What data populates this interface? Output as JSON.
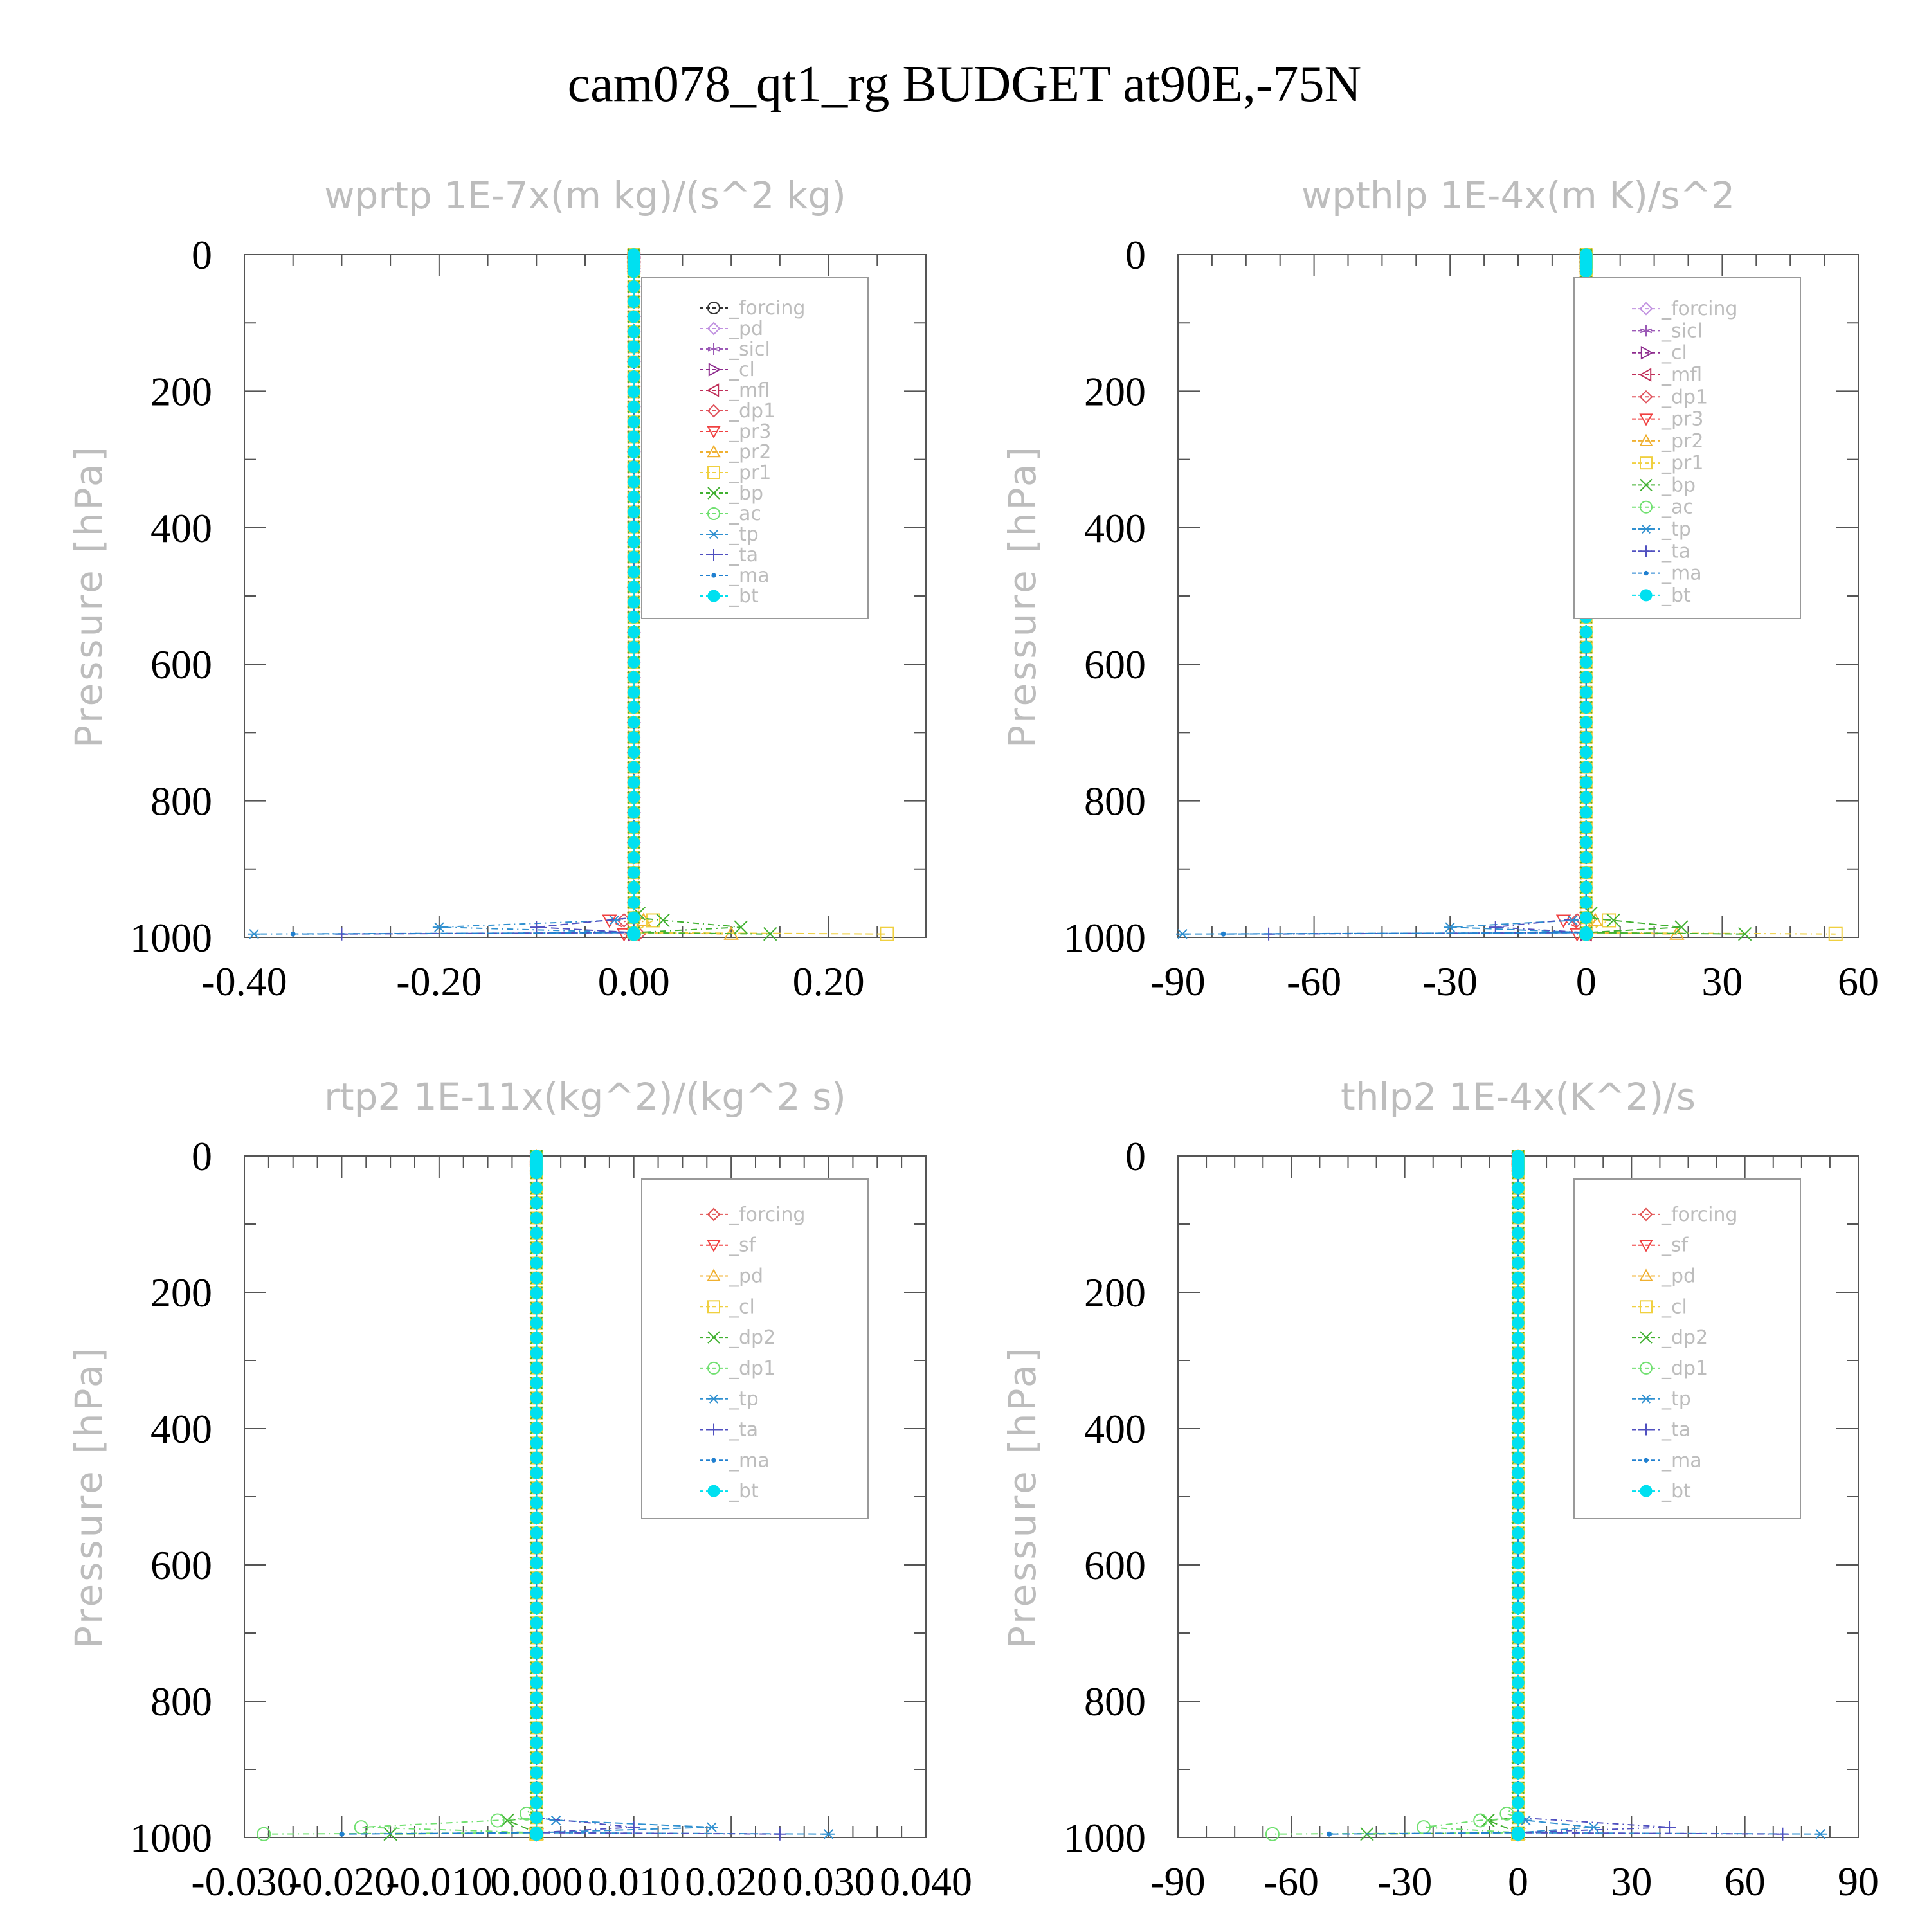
{
  "figure": {
    "title": "cam078_qt1_rg  BUDGET at90E,-75N"
  },
  "chart_data": [
    {
      "type": "line",
      "title": "wprtp   1E-7x(m kg)/(s^2 kg)",
      "ylabel": "Pressure [hPa]",
      "ylim": [
        1000,
        0
      ],
      "y_ticks": [
        "0",
        "200",
        "400",
        "600",
        "800",
        "1000"
      ],
      "xlim": [
        -0.4,
        0.3
      ],
      "x_ticks": [
        "-0.40",
        "-0.20",
        "0.00",
        "0.20"
      ],
      "x_tick_values": [
        -0.4,
        -0.2,
        0.0,
        0.2
      ],
      "legend": {
        "placement": "top-right",
        "entries": [
          "_forcing",
          "_pd",
          "_sicl",
          "_cl",
          "_mfl",
          "_dp1",
          "_pr3",
          "_pr2",
          "_pr1",
          "_bp",
          "_ac",
          "_tp",
          "_ta",
          "_ma",
          "_bt"
        ]
      },
      "series": [
        {
          "name": "_forcing",
          "color": "#333333",
          "marker": "circle",
          "surface": [
            [
              995,
              0
            ]
          ]
        },
        {
          "name": "_pd",
          "color": "#c090e0",
          "marker": "diamond",
          "surface": [
            [
              995,
              0
            ]
          ]
        },
        {
          "name": "_sicl",
          "color": "#9b59b6",
          "marker": "star",
          "surface": [
            [
              995,
              0
            ]
          ]
        },
        {
          "name": "_cl",
          "color": "#8e2c8e",
          "marker": "triangle-right",
          "surface": [
            [
              995,
              0
            ]
          ]
        },
        {
          "name": "_mfl",
          "color": "#c0305a",
          "marker": "triangle-left",
          "surface": [
            [
              995,
              0
            ]
          ]
        },
        {
          "name": "_dp1",
          "color": "#e0505a",
          "marker": "diamond",
          "surface": [
            [
              975,
              -0.01
            ],
            [
              995,
              0.005
            ]
          ]
        },
        {
          "name": "_pr3",
          "color": "#f04040",
          "marker": "triangle-down",
          "surface": [
            [
              975,
              -0.025
            ],
            [
              995,
              -0.01
            ]
          ]
        },
        {
          "name": "_pr2",
          "color": "#f0b030",
          "marker": "triangle-up",
          "surface": [
            [
              975,
              0.01
            ],
            [
              995,
              0.1
            ]
          ]
        },
        {
          "name": "_pr1",
          "color": "#f0d040",
          "marker": "square",
          "surface": [
            [
              975,
              0.02
            ],
            [
              995,
              0.26
            ]
          ]
        },
        {
          "name": "_bp",
          "color": "#40b030",
          "marker": "x",
          "surface": [
            [
              965,
              0.005
            ],
            [
              975,
              0.03
            ],
            [
              985,
              0.11
            ],
            [
              995,
              0.14
            ]
          ]
        },
        {
          "name": "_ac",
          "color": "#70e070",
          "marker": "circle",
          "surface": [
            [
              995,
              0
            ]
          ]
        },
        {
          "name": "_tp",
          "color": "#3090d0",
          "marker": "asterisk",
          "surface": [
            [
              975,
              -0.02
            ],
            [
              985,
              -0.2
            ],
            [
              995,
              -0.39
            ]
          ]
        },
        {
          "name": "_ta",
          "color": "#5050c0",
          "marker": "plus",
          "surface": [
            [
              985,
              -0.1
            ],
            [
              995,
              -0.3
            ]
          ]
        },
        {
          "name": "_ma",
          "color": "#2080d0",
          "marker": "dot",
          "surface": [
            [
              995,
              -0.35
            ]
          ]
        },
        {
          "name": "_bt",
          "color": "#00e0f0",
          "marker": "filled-circle",
          "surface": [
            [
              995,
              0
            ]
          ]
        }
      ]
    },
    {
      "type": "line",
      "title": "wpthlp   1E-4x(m K)/s^2",
      "ylabel": "Pressure [hPa]",
      "ylim": [
        1000,
        0
      ],
      "y_ticks": [
        "0",
        "200",
        "400",
        "600",
        "800",
        "1000"
      ],
      "xlim": [
        -90,
        60
      ],
      "x_ticks": [
        "-90",
        "-60",
        "-30",
        "0",
        "30",
        "60"
      ],
      "x_tick_values": [
        -90,
        -60,
        -30,
        0,
        30,
        60
      ],
      "legend": {
        "placement": "top-right",
        "entries": [
          "_forcing",
          "_sicl",
          "_cl",
          "_mfl",
          "_dp1",
          "_pr3",
          "_pr2",
          "_pr1",
          "_bp",
          "_ac",
          "_tp",
          "_ta",
          "_ma",
          "_bt"
        ]
      },
      "series": [
        {
          "name": "_forcing",
          "color": "#c090e0",
          "marker": "diamond",
          "surface": [
            [
              995,
              0
            ]
          ]
        },
        {
          "name": "_sicl",
          "color": "#9b59b6",
          "marker": "star",
          "surface": [
            [
              995,
              0
            ]
          ]
        },
        {
          "name": "_cl",
          "color": "#8e2c8e",
          "marker": "triangle-right",
          "surface": [
            [
              995,
              0
            ]
          ]
        },
        {
          "name": "_mfl",
          "color": "#c0305a",
          "marker": "triangle-left",
          "surface": [
            [
              995,
              0
            ]
          ]
        },
        {
          "name": "_dp1",
          "color": "#e0505a",
          "marker": "diamond",
          "surface": [
            [
              975,
              -2
            ],
            [
              995,
              0
            ]
          ]
        },
        {
          "name": "_pr3",
          "color": "#f04040",
          "marker": "triangle-down",
          "surface": [
            [
              975,
              -5
            ],
            [
              995,
              -2
            ]
          ]
        },
        {
          "name": "_pr2",
          "color": "#f0b030",
          "marker": "triangle-up",
          "surface": [
            [
              975,
              2
            ],
            [
              995,
              20
            ]
          ]
        },
        {
          "name": "_pr1",
          "color": "#f0d040",
          "marker": "square",
          "surface": [
            [
              975,
              5
            ],
            [
              995,
              55
            ]
          ]
        },
        {
          "name": "_bp",
          "color": "#40b030",
          "marker": "x",
          "surface": [
            [
              965,
              1
            ],
            [
              975,
              6
            ],
            [
              985,
              21
            ],
            [
              995,
              35
            ]
          ]
        },
        {
          "name": "_ac",
          "color": "#70e070",
          "marker": "circle",
          "surface": [
            [
              995,
              0
            ]
          ]
        },
        {
          "name": "_tp",
          "color": "#3090d0",
          "marker": "asterisk",
          "surface": [
            [
              975,
              -3
            ],
            [
              985,
              -30
            ],
            [
              995,
              -89
            ]
          ]
        },
        {
          "name": "_ta",
          "color": "#5050c0",
          "marker": "plus",
          "surface": [
            [
              985,
              -20
            ],
            [
              995,
              -70
            ]
          ]
        },
        {
          "name": "_ma",
          "color": "#2080d0",
          "marker": "dot",
          "surface": [
            [
              995,
              -80
            ]
          ]
        },
        {
          "name": "_bt",
          "color": "#00e0f0",
          "marker": "filled-circle",
          "surface": [
            [
              995,
              0
            ]
          ]
        }
      ]
    },
    {
      "type": "line",
      "title": "rtp2   1E-11x(kg^2)/(kg^2 s)",
      "ylabel": "Pressure [hPa]",
      "ylim": [
        1000,
        0
      ],
      "y_ticks": [
        "0",
        "200",
        "400",
        "600",
        "800",
        "1000"
      ],
      "xlim": [
        -0.03,
        0.04
      ],
      "x_ticks": [
        "-0.030",
        "-0.020",
        "-0.010",
        "0.000",
        "0.010",
        "0.020",
        "0.030",
        "0.040"
      ],
      "x_tick_values": [
        -0.03,
        -0.02,
        -0.01,
        0.0,
        0.01,
        0.02,
        0.03,
        0.04
      ],
      "legend": {
        "placement": "top-right",
        "entries": [
          "_forcing",
          "_sf",
          "_pd",
          "_cl",
          "_dp2",
          "_dp1",
          "_tp",
          "_ta",
          "_ma",
          "_bt"
        ]
      },
      "series": [
        {
          "name": "_forcing",
          "color": "#e05050",
          "marker": "diamond",
          "surface": [
            [
              995,
              0
            ]
          ]
        },
        {
          "name": "_sf",
          "color": "#f04040",
          "marker": "triangle-down",
          "surface": [
            [
              995,
              0
            ]
          ]
        },
        {
          "name": "_pd",
          "color": "#f0b030",
          "marker": "triangle-up",
          "surface": [
            [
              995,
              0
            ]
          ]
        },
        {
          "name": "_cl",
          "color": "#f0d040",
          "marker": "square",
          "surface": [
            [
              995,
              0
            ]
          ]
        },
        {
          "name": "_dp2",
          "color": "#40b030",
          "marker": "x",
          "surface": [
            [
              975,
              -0.003
            ],
            [
              995,
              -0.015
            ]
          ]
        },
        {
          "name": "_dp1",
          "color": "#70e070",
          "marker": "circle",
          "surface": [
            [
              965,
              -0.001
            ],
            [
              975,
              -0.004
            ],
            [
              985,
              -0.018
            ],
            [
              995,
              -0.028
            ]
          ]
        },
        {
          "name": "_tp",
          "color": "#3090d0",
          "marker": "asterisk",
          "surface": [
            [
              975,
              0.002
            ],
            [
              985,
              0.018
            ],
            [
              995,
              0.03
            ]
          ]
        },
        {
          "name": "_ta",
          "color": "#5050c0",
          "marker": "plus",
          "surface": [
            [
              985,
              0.01
            ],
            [
              995,
              0.025
            ]
          ]
        },
        {
          "name": "_ma",
          "color": "#2080d0",
          "marker": "dot",
          "surface": [
            [
              995,
              -0.02
            ]
          ]
        },
        {
          "name": "_bt",
          "color": "#00e0f0",
          "marker": "filled-circle",
          "surface": [
            [
              995,
              0
            ]
          ]
        }
      ]
    },
    {
      "type": "line",
      "title": "thlp2   1E-4x(K^2)/s",
      "ylabel": "Pressure [hPa]",
      "ylim": [
        1000,
        0
      ],
      "y_ticks": [
        "0",
        "200",
        "400",
        "600",
        "800",
        "1000"
      ],
      "xlim": [
        -90,
        90
      ],
      "x_ticks": [
        "-90",
        "-60",
        "-30",
        "0",
        "30",
        "60",
        "90"
      ],
      "x_tick_values": [
        -90,
        -60,
        -30,
        0,
        30,
        60,
        90
      ],
      "legend": {
        "placement": "top-right",
        "entries": [
          "_forcing",
          "_sf",
          "_pd",
          "_cl",
          "_dp2",
          "_dp1",
          "_tp",
          "_ta",
          "_ma",
          "_bt"
        ]
      },
      "series": [
        {
          "name": "_forcing",
          "color": "#e05050",
          "marker": "diamond",
          "surface": [
            [
              995,
              0
            ]
          ]
        },
        {
          "name": "_sf",
          "color": "#f04040",
          "marker": "triangle-down",
          "surface": [
            [
              995,
              0
            ]
          ]
        },
        {
          "name": "_pd",
          "color": "#f0b030",
          "marker": "triangle-up",
          "surface": [
            [
              995,
              0
            ]
          ]
        },
        {
          "name": "_cl",
          "color": "#f0d040",
          "marker": "square",
          "surface": [
            [
              995,
              0
            ]
          ]
        },
        {
          "name": "_dp2",
          "color": "#40b030",
          "marker": "x",
          "surface": [
            [
              975,
              -8
            ],
            [
              995,
              -40
            ]
          ]
        },
        {
          "name": "_dp1",
          "color": "#70e070",
          "marker": "circle",
          "surface": [
            [
              965,
              -3
            ],
            [
              975,
              -10
            ],
            [
              985,
              -25
            ],
            [
              995,
              -65
            ]
          ]
        },
        {
          "name": "_tp",
          "color": "#3090d0",
          "marker": "asterisk",
          "surface": [
            [
              975,
              2
            ],
            [
              985,
              20
            ],
            [
              995,
              80
            ]
          ]
        },
        {
          "name": "_ta",
          "color": "#5050c0",
          "marker": "plus",
          "surface": [
            [
              985,
              40
            ],
            [
              995,
              70
            ]
          ]
        },
        {
          "name": "_ma",
          "color": "#2080d0",
          "marker": "dot",
          "surface": [
            [
              995,
              -50
            ]
          ]
        },
        {
          "name": "_bt",
          "color": "#00e0f0",
          "marker": "filled-circle",
          "surface": [
            [
              995,
              0
            ]
          ]
        }
      ]
    }
  ]
}
